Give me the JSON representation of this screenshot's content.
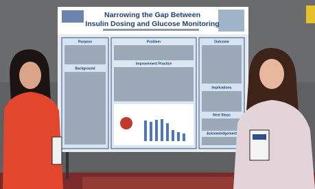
{
  "poster": {
    "title_lines": [
      "Narrowing the Gap Between",
      "Insulin Dosing and Glucose Monitoring"
    ],
    "sections": {
      "purpose": "Purpose",
      "background": "Background",
      "problem": "Problem",
      "improvement": "Improvement Practice",
      "outcome": "Outcome",
      "implications": "Implications",
      "next_steps": "Next Steps",
      "acknowledgement": "Acknowledgement"
    }
  }
}
